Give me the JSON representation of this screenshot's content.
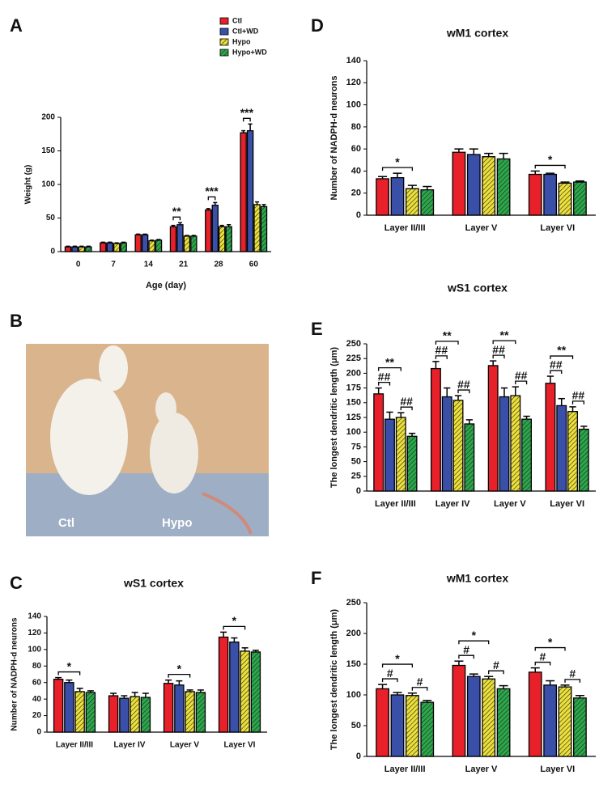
{
  "chart_data": [
    {
      "panel": "A",
      "type": "bar",
      "xlabel": "Age (day)",
      "ylabel": "Weight (g)",
      "categories": [
        "0",
        "7",
        "14",
        "21",
        "28",
        "60"
      ],
      "ylim": [
        0,
        200
      ],
      "yticks": [
        0,
        50,
        100,
        150,
        200
      ],
      "legend": "top-right",
      "series": [
        {
          "name": "Ctl",
          "color": "#e8202a",
          "values": [
            7,
            13,
            25,
            37,
            62,
            177
          ],
          "errors": [
            1,
            1,
            1,
            2,
            2,
            3
          ]
        },
        {
          "name": "Ctl+WD",
          "color": "#3a4fa8",
          "values": [
            7,
            13,
            25,
            40,
            69,
            180
          ],
          "errors": [
            1,
            1,
            1,
            3,
            4,
            10
          ]
        },
        {
          "name": "Hypo",
          "color": "#ece03a",
          "hatch": true,
          "values": [
            7,
            12,
            16,
            23,
            37,
            70
          ],
          "errors": [
            1,
            1,
            1,
            1,
            2,
            4
          ]
        },
        {
          "name": "Hypo+WD",
          "color": "#2aa84a",
          "hatch": true,
          "values": [
            7,
            13,
            17,
            23,
            37,
            67
          ],
          "errors": [
            1,
            1,
            1,
            1,
            3,
            3
          ]
        }
      ],
      "annotations": [
        {
          "text": "**",
          "category": 3,
          "series": [
            0,
            1
          ]
        },
        {
          "text": "***",
          "category": 4,
          "series": [
            0,
            1
          ]
        },
        {
          "text": "***",
          "category": 5,
          "series": [
            0,
            1
          ]
        }
      ]
    },
    {
      "panel": "D",
      "type": "bar",
      "title": "wM1 cortex",
      "ylabel": "Number of NADPH-d neurons",
      "categories": [
        "Layer II/III",
        "Layer V",
        "Layer VI"
      ],
      "ylim": [
        0,
        140
      ],
      "yticks": [
        0,
        20,
        40,
        60,
        80,
        100,
        120,
        140
      ],
      "series": [
        {
          "color": "#e8202a",
          "values": [
            33,
            57,
            37
          ],
          "errors": [
            2,
            3,
            3
          ]
        },
        {
          "color": "#3a4fa8",
          "values": [
            34,
            55,
            37
          ],
          "errors": [
            4,
            5,
            1
          ]
        },
        {
          "color": "#ece03a",
          "hatch": true,
          "values": [
            24,
            53,
            29
          ],
          "errors": [
            3,
            3,
            1
          ]
        },
        {
          "color": "#2aa84a",
          "hatch": true,
          "values": [
            23,
            51,
            30
          ],
          "errors": [
            3,
            5,
            1
          ]
        }
      ],
      "annotations": [
        {
          "text": "*",
          "category": 0,
          "series": [
            0,
            2
          ]
        },
        {
          "text": "*",
          "category": 2,
          "series": [
            0,
            2
          ]
        }
      ]
    },
    {
      "panel": "E",
      "type": "bar",
      "title": "wS1 cortex",
      "ylabel": "The longest dendritic length (μm)",
      "categories": [
        "Layer II/III",
        "Layer IV",
        "Layer V",
        "Layer VI"
      ],
      "ylim": [
        0,
        250
      ],
      "yticks": [
        0,
        25,
        50,
        75,
        100,
        125,
        150,
        175,
        200,
        225,
        250
      ],
      "series": [
        {
          "color": "#e8202a",
          "values": [
            165,
            208,
            213,
            183
          ],
          "errors": [
            10,
            12,
            8,
            12
          ]
        },
        {
          "color": "#3a4fa8",
          "values": [
            122,
            160,
            160,
            145
          ],
          "errors": [
            12,
            15,
            15,
            12
          ]
        },
        {
          "color": "#ece03a",
          "hatch": true,
          "values": [
            125,
            154,
            162,
            135
          ],
          "errors": [
            8,
            8,
            15,
            8
          ]
        },
        {
          "color": "#2aa84a",
          "hatch": true,
          "values": [
            93,
            114,
            122,
            105
          ],
          "errors": [
            5,
            7,
            5,
            5
          ]
        }
      ],
      "annotations": [
        {
          "text": "##",
          "category": 0,
          "series": [
            0,
            1
          ]
        },
        {
          "text": "##",
          "category": 0,
          "series": [
            2,
            3
          ]
        },
        {
          "text": "**",
          "category": 0,
          "series": [
            0,
            2
          ]
        },
        {
          "text": "##",
          "category": 1,
          "series": [
            0,
            1
          ]
        },
        {
          "text": "##",
          "category": 1,
          "series": [
            2,
            3
          ]
        },
        {
          "text": "**",
          "category": 1,
          "series": [
            0,
            2
          ]
        },
        {
          "text": "##",
          "category": 2,
          "series": [
            0,
            1
          ]
        },
        {
          "text": "##",
          "category": 2,
          "series": [
            2,
            3
          ]
        },
        {
          "text": "**",
          "category": 2,
          "series": [
            0,
            2
          ]
        },
        {
          "text": "##",
          "category": 3,
          "series": [
            0,
            1
          ]
        },
        {
          "text": "##",
          "category": 3,
          "series": [
            2,
            3
          ]
        },
        {
          "text": "**",
          "category": 3,
          "series": [
            0,
            2
          ]
        }
      ]
    },
    {
      "panel": "C",
      "type": "bar",
      "title": "wS1 cortex",
      "ylabel": "Number of NADPH-d neurons",
      "categories": [
        "Layer II/III",
        "Layer IV",
        "Layer V",
        "Layer VI"
      ],
      "ylim": [
        0,
        140
      ],
      "yticks": [
        0,
        20,
        40,
        60,
        80,
        100,
        120,
        140
      ],
      "series": [
        {
          "color": "#e8202a",
          "values": [
            64,
            44,
            59,
            115
          ],
          "errors": [
            2,
            3,
            4,
            6
          ]
        },
        {
          "color": "#3a4fa8",
          "values": [
            60,
            41,
            57,
            109
          ],
          "errors": [
            3,
            3,
            5,
            5
          ]
        },
        {
          "color": "#ece03a",
          "hatch": true,
          "values": [
            49,
            43,
            49,
            98
          ],
          "errors": [
            4,
            5,
            2,
            4
          ]
        },
        {
          "color": "#2aa84a",
          "hatch": true,
          "values": [
            48,
            42,
            48,
            97
          ],
          "errors": [
            2,
            5,
            3,
            2
          ]
        }
      ],
      "annotations": [
        {
          "text": "*",
          "category": 0,
          "series": [
            0,
            2
          ]
        },
        {
          "text": "*",
          "category": 2,
          "series": [
            0,
            2
          ]
        },
        {
          "text": "*",
          "category": 3,
          "series": [
            0,
            2
          ]
        }
      ]
    },
    {
      "panel": "F",
      "type": "bar",
      "title": "wM1 cortex",
      "ylabel": "The longest dendritic length (μm)",
      "categories": [
        "Layer II/III",
        "Layer V",
        "Layer VI"
      ],
      "ylim": [
        0,
        250
      ],
      "yticks": [
        0,
        50,
        100,
        150,
        200,
        250
      ],
      "series": [
        {
          "color": "#e8202a",
          "values": [
            110,
            148,
            137
          ],
          "errors": [
            7,
            7,
            7
          ]
        },
        {
          "color": "#3a4fa8",
          "values": [
            100,
            130,
            116
          ],
          "errors": [
            4,
            4,
            7
          ]
        },
        {
          "color": "#ece03a",
          "hatch": true,
          "values": [
            99,
            126,
            113
          ],
          "errors": [
            4,
            4,
            3
          ]
        },
        {
          "color": "#2aa84a",
          "hatch": true,
          "values": [
            88,
            110,
            95
          ],
          "errors": [
            3,
            5,
            4
          ]
        }
      ],
      "annotations": [
        {
          "text": "#",
          "category": 0,
          "series": [
            0,
            1
          ]
        },
        {
          "text": "#",
          "category": 0,
          "series": [
            2,
            3
          ]
        },
        {
          "text": "*",
          "category": 0,
          "series": [
            0,
            2
          ]
        },
        {
          "text": "#",
          "category": 1,
          "series": [
            0,
            1
          ]
        },
        {
          "text": "#",
          "category": 1,
          "series": [
            2,
            3
          ]
        },
        {
          "text": "*",
          "category": 1,
          "series": [
            0,
            2
          ]
        },
        {
          "text": "#",
          "category": 2,
          "series": [
            0,
            1
          ]
        },
        {
          "text": "#",
          "category": 2,
          "series": [
            2,
            3
          ]
        },
        {
          "text": "*",
          "category": 2,
          "series": [
            0,
            2
          ]
        }
      ]
    }
  ],
  "photo": {
    "panel": "B",
    "labels": [
      "Ctl",
      "Hypo"
    ]
  }
}
